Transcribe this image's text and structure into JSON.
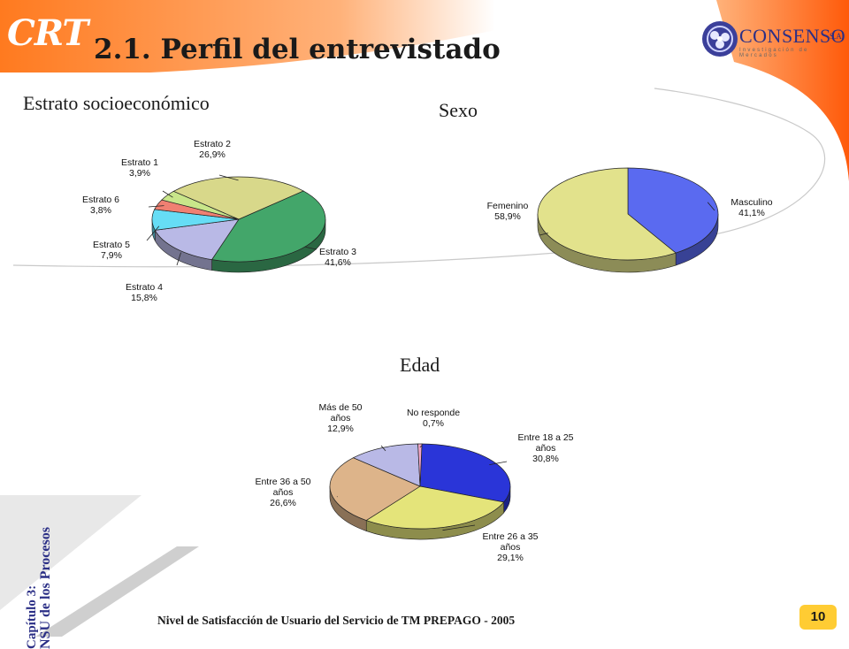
{
  "header": {
    "logo": "CRT",
    "title": "2.1. Perfil del entrevistado",
    "brand": {
      "name": "CONSENSO",
      "suffix": "S.A.",
      "tagline": "Investigación de Mercados"
    }
  },
  "chapter": {
    "line1": "Capítulo 3:",
    "line2": "NSU de los Procesos"
  },
  "footer": {
    "text": "Nivel de Satisfacción de Usuario del Servicio de TM PREPAGO - 2005",
    "page": "10"
  },
  "colors": {
    "orange": "#ff6a1a",
    "brand_blue": "#2b2f86",
    "badge": "#ffcc33"
  },
  "chart_data": [
    {
      "type": "pie",
      "title": "Estrato socioeconómico",
      "slices": [
        {
          "label_lines": [
            "Estrato 3",
            "41,6%"
          ],
          "value": 41.6,
          "color": "#43a66a"
        },
        {
          "label_lines": [
            "Estrato 4",
            "15,8%"
          ],
          "value": 15.8,
          "color": "#b9b9e6"
        },
        {
          "label_lines": [
            "Estrato 5",
            "7,9%"
          ],
          "value": 7.9,
          "color": "#66ddf5"
        },
        {
          "label_lines": [
            "Estrato 6",
            "3,8%"
          ],
          "value": 3.8,
          "color": "#f08072"
        },
        {
          "label_lines": [
            "Estrato 1",
            "3,9%"
          ],
          "value": 3.9,
          "color": "#c8e68a"
        },
        {
          "label_lines": [
            "Estrato 2",
            "26,9%"
          ],
          "value": 26.9,
          "color": "#d8d88a"
        }
      ]
    },
    {
      "type": "pie",
      "title": "Sexo",
      "slices": [
        {
          "label_lines": [
            "Masculino",
            "41,1%"
          ],
          "value": 41.1,
          "color": "#5a6af0"
        },
        {
          "label_lines": [
            "Femenino",
            "58,9%"
          ],
          "value": 58.9,
          "color": "#e2e28c"
        }
      ]
    },
    {
      "type": "pie",
      "title": "Edad",
      "slices": [
        {
          "label_lines": [
            "Entre 18 a 25",
            "años",
            "30,8%"
          ],
          "value": 30.8,
          "color": "#2a35d8"
        },
        {
          "label_lines": [
            "Entre 26 a 35",
            "años",
            "29,1%"
          ],
          "value": 29.1,
          "color": "#e4e47a"
        },
        {
          "label_lines": [
            "Entre 36 a 50",
            "años",
            "26,6%"
          ],
          "value": 26.6,
          "color": "#ddb48a"
        },
        {
          "label_lines": [
            "Más de 50",
            "años",
            "12,9%"
          ],
          "value": 12.9,
          "color": "#b9b9e6"
        },
        {
          "label_lines": [
            "No responde",
            "0,7%"
          ],
          "value": 0.7,
          "color": "#f2a8c8"
        }
      ]
    }
  ]
}
